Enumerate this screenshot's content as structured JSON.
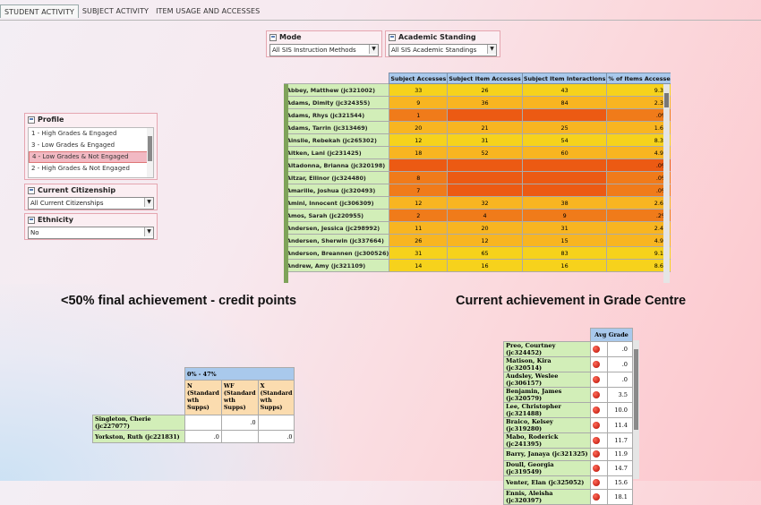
{
  "tabs": [
    "STUDENT ACTIVITY",
    "SUBJECT ACTIVITY",
    "ITEM USAGE AND ACCESSES"
  ],
  "filters": {
    "mode": {
      "label": "Mode",
      "value": "All SIS Instruction Methods"
    },
    "standing": {
      "label": "Academic Standing",
      "value": "All SIS Academic Standings"
    },
    "profile": {
      "label": "Profile",
      "items": [
        "1 - High Grades & Engaged",
        "3 - Low Grades & Engaged",
        "4 - Low Grades & Not Engaged",
        "2 - High Grades & Not Engaged"
      ],
      "selected_index": 2
    },
    "citizenship": {
      "label": "Current Citizenship",
      "value": "All Current Citizenships"
    },
    "ethnicity": {
      "label": "Ethnicity",
      "value": "No"
    }
  },
  "activity_grid": {
    "columns": [
      "Subject Accesses",
      "Subject Item Accesses",
      "Subject Item Interactions",
      "% of Items Accessed per Student"
    ],
    "rows": [
      {
        "name": "Abbey, Matthew (jc321002)",
        "c": [
          "33",
          "26",
          "43",
          "9.3%"
        ]
      },
      {
        "name": "Adams, Dimity (jc324355)",
        "c": [
          "9",
          "36",
          "84",
          "2.3%"
        ]
      },
      {
        "name": "Adams, Rhys (jc321544)",
        "c": [
          "1",
          "",
          "",
          ".0%"
        ]
      },
      {
        "name": "Adams, Tarrin (jc313469)",
        "c": [
          "20",
          "21",
          "25",
          "1.6%"
        ]
      },
      {
        "name": "Ainslie, Rebekah (jc265302)",
        "c": [
          "12",
          "31",
          "54",
          "8.3%"
        ]
      },
      {
        "name": "Aitken, Lani (jc231425)",
        "c": [
          "18",
          "52",
          "60",
          "4.9%"
        ]
      },
      {
        "name": "Altadonna, Brianna (jc320198)",
        "c": [
          "",
          "",
          "",
          ".0%"
        ]
      },
      {
        "name": "Altzar, Ellinor (jc324480)",
        "c": [
          "8",
          "",
          "",
          ".0%"
        ]
      },
      {
        "name": "Amarille, Joshua (jc320493)",
        "c": [
          "7",
          "",
          "",
          ".0%"
        ]
      },
      {
        "name": "Amini, Innocent (jc306309)",
        "c": [
          "12",
          "32",
          "38",
          "2.6%"
        ]
      },
      {
        "name": "Amos, Sarah (jc220955)",
        "c": [
          "2",
          "4",
          "9",
          ".2%"
        ]
      },
      {
        "name": "Andersen, Jessica (jc298992)",
        "c": [
          "11",
          "20",
          "31",
          "2.4%"
        ]
      },
      {
        "name": "Andersen, Sherwin (jc337664)",
        "c": [
          "26",
          "12",
          "15",
          "4.9%"
        ]
      },
      {
        "name": "Anderson, Breannen (jc300526)",
        "c": [
          "31",
          "65",
          "83",
          "9.1%"
        ]
      },
      {
        "name": "Andrew, Amy (jc321109)",
        "c": [
          "14",
          "16",
          "16",
          "8.6%"
        ]
      }
    ]
  },
  "captions": {
    "left": "<50% final achievement - credit points",
    "right": "Current achievement in Grade Centre"
  },
  "band_table": {
    "band": "0% - 47%",
    "cols": [
      "N (Standard wth Supps)",
      "WF (Standard wth Supps)",
      "X (Standard wth Supps)"
    ],
    "rows": [
      {
        "name": "Singleton, Cherie (jc227077)",
        "vals": [
          "",
          ".0",
          ""
        ]
      },
      {
        "name": "Yorkston, Ruth (jc221831)",
        "vals": [
          ".0",
          "",
          ".0"
        ]
      }
    ]
  },
  "avg_table": {
    "header": "Avg Grade",
    "rows": [
      {
        "name": "Preo, Courtney (jc324452)",
        "val": ".0"
      },
      {
        "name": "Matison, Kira (jc320514)",
        "val": ".0"
      },
      {
        "name": "Audsley, Weslee (jc306157)",
        "val": ".0"
      },
      {
        "name": "Benjamin, James (jc320579)",
        "val": "3.5"
      },
      {
        "name": "Lee, Christopher (jc321488)",
        "val": "10.0"
      },
      {
        "name": "Braico, Kelsey (jc319280)",
        "val": "11.4"
      },
      {
        "name": "Mabo, Roderick (jc241395)",
        "val": "11.7"
      },
      {
        "name": "Barry, Janaya (jc321325)",
        "val": "11.9"
      },
      {
        "name": "Doull, Georgia (jc319549)",
        "val": "14.7"
      },
      {
        "name": "Venter, Elan (jc325052)",
        "val": "15.6"
      },
      {
        "name": "Ennis, Aleisha (jc320397)",
        "val": "18.1"
      }
    ]
  },
  "heat_colors": {
    "high": "#f6d21c",
    "mid": "#f8b521",
    "low": "#f07b1a",
    "min": "#ec5a13"
  }
}
